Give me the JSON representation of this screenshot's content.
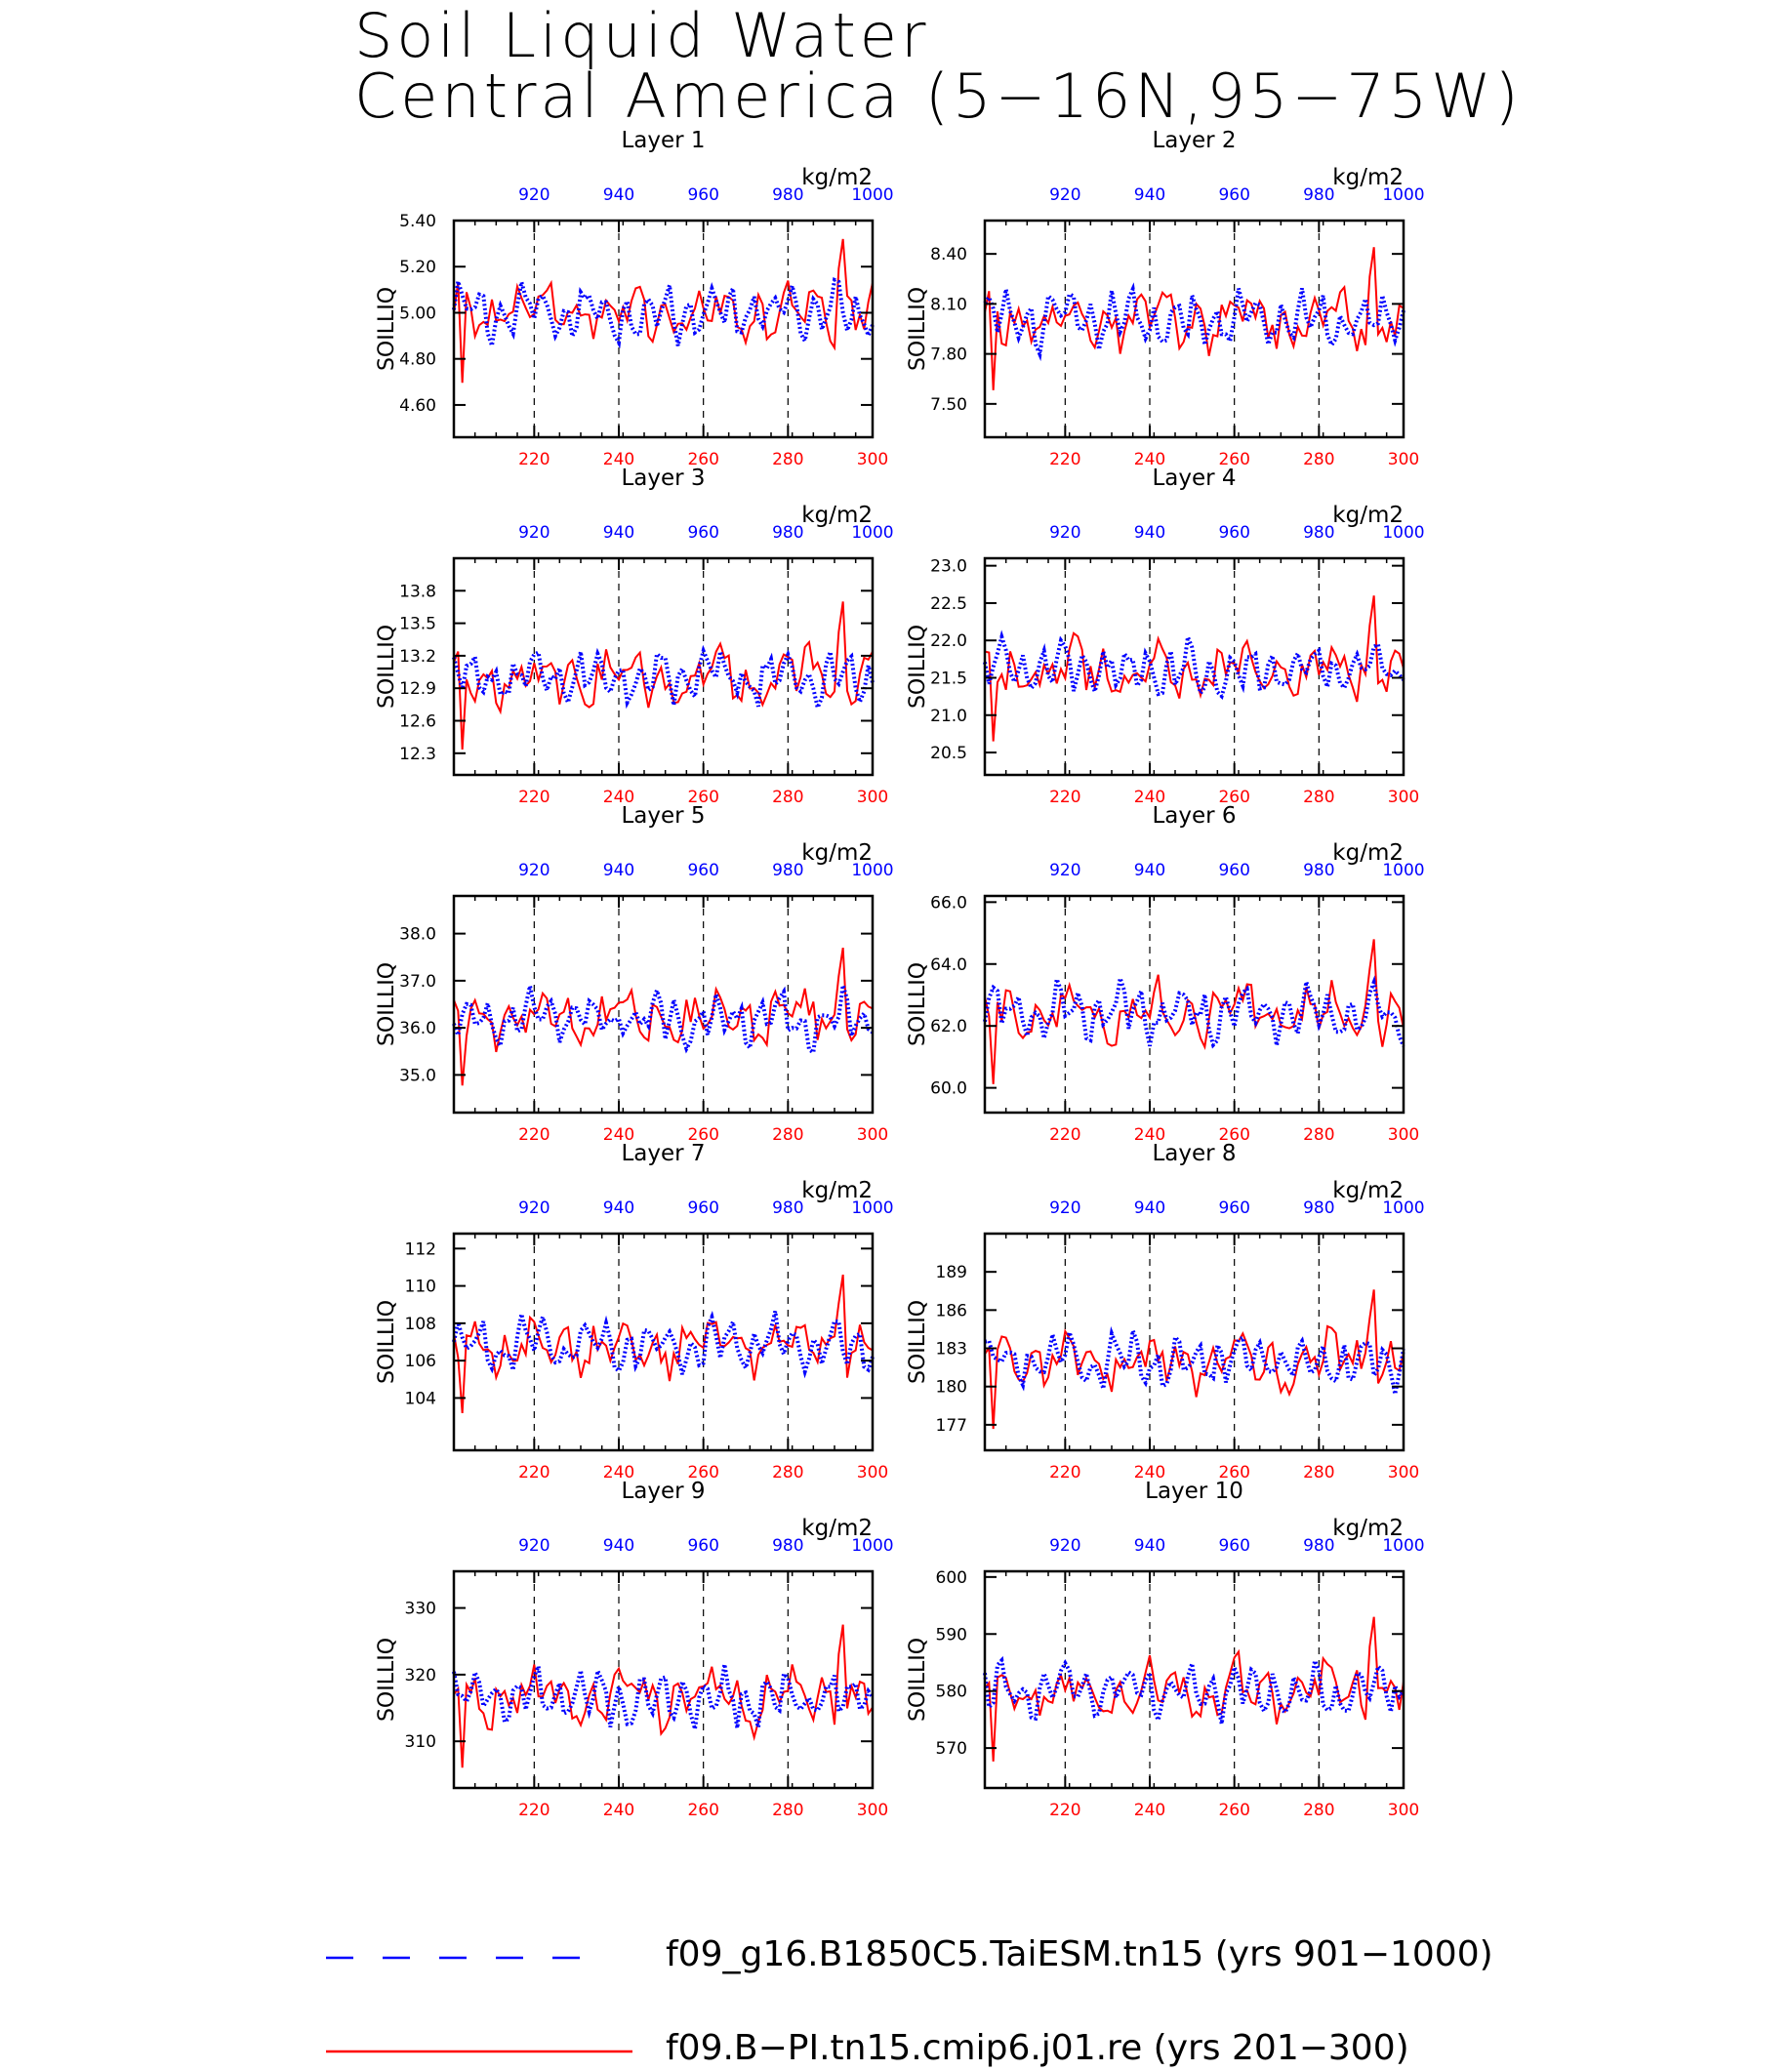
{
  "title_lines": [
    "Soil Liquid Water",
    "Central America (5−16N,95−75W)"
  ],
  "colors": {
    "blue": "#0000ff",
    "red": "#ff0000",
    "axis": "#000000"
  },
  "legend": [
    {
      "label": "f09_g16.B1850C5.TaiESM.tn15 (yrs 901−1000)",
      "color": "#0000ff",
      "style": "dashed"
    },
    {
      "label": "f09.B−PI.tn15.cmip6.j01.re (yrs 201−300)",
      "color": "#ff0000",
      "style": "solid"
    }
  ],
  "chart_data": [
    {
      "type": "line",
      "title": "Layer 1",
      "ylabel": "SOILLIQ",
      "units": "kg/m2",
      "ylim": [
        4.46,
        5.4
      ],
      "yticks": [
        "5.40",
        "5.20",
        "5.00",
        "4.80",
        "4.60"
      ],
      "base": 5.0,
      "amp": 0.16,
      "xlim_bottom": [
        201,
        300
      ],
      "xticks_bottom": [
        "220",
        "240",
        "260",
        "280",
        "300"
      ],
      "xlim_top": [
        901,
        1000
      ],
      "xticks_top": [
        "920",
        "940",
        "960",
        "980",
        "1000"
      ],
      "grid_x": [
        220,
        240,
        260,
        280
      ]
    },
    {
      "type": "line",
      "title": "Layer 2",
      "ylabel": "SOILLIQ",
      "units": "kg/m2",
      "ylim": [
        7.3,
        8.6
      ],
      "yticks": [
        "8.40",
        "8.10",
        "7.80",
        "7.50"
      ],
      "base": 8.0,
      "amp": 0.22,
      "xlim_bottom": [
        201,
        300
      ],
      "xticks_bottom": [
        "220",
        "240",
        "260",
        "280",
        "300"
      ],
      "xlim_top": [
        901,
        1000
      ],
      "xticks_top": [
        "920",
        "940",
        "960",
        "980",
        "1000"
      ],
      "grid_x": [
        220,
        240,
        260,
        280
      ]
    },
    {
      "type": "line",
      "title": "Layer 3",
      "ylabel": "SOILLIQ",
      "units": "kg/m2",
      "ylim": [
        12.1,
        14.1
      ],
      "yticks": [
        "13.8",
        "13.5",
        "13.2",
        "12.9",
        "12.6",
        "12.3"
      ],
      "base": 13.0,
      "amp": 0.35,
      "xlim_bottom": [
        201,
        300
      ],
      "xticks_bottom": [
        "220",
        "240",
        "260",
        "280",
        "300"
      ],
      "xlim_top": [
        901,
        1000
      ],
      "xticks_top": [
        "920",
        "940",
        "960",
        "980",
        "1000"
      ],
      "grid_x": [
        220,
        240,
        260,
        280
      ]
    },
    {
      "type": "line",
      "title": "Layer 4",
      "ylabel": "SOILLIQ",
      "units": "kg/m2",
      "ylim": [
        20.2,
        23.1
      ],
      "yticks": [
        "23.0",
        "22.5",
        "22.0",
        "21.5",
        "21.0",
        "20.5"
      ],
      "base": 21.6,
      "amp": 0.5,
      "xlim_bottom": [
        201,
        300
      ],
      "xticks_bottom": [
        "220",
        "240",
        "260",
        "280",
        "300"
      ],
      "xlim_top": [
        901,
        1000
      ],
      "xticks_top": [
        "920",
        "940",
        "960",
        "980",
        "1000"
      ],
      "grid_x": [
        220,
        240,
        260,
        280
      ]
    },
    {
      "type": "line",
      "title": "Layer 5",
      "ylabel": "SOILLIQ",
      "units": "kg/m2",
      "ylim": [
        34.2,
        38.8
      ],
      "yticks": [
        "38.0",
        "37.0",
        "36.0",
        "35.0"
      ],
      "base": 36.2,
      "amp": 0.75,
      "xlim_bottom": [
        201,
        300
      ],
      "xticks_bottom": [
        "220",
        "240",
        "260",
        "280",
        "300"
      ],
      "xlim_top": [
        901,
        1000
      ],
      "xticks_top": [
        "920",
        "940",
        "960",
        "980",
        "1000"
      ],
      "grid_x": [
        220,
        240,
        260,
        280
      ]
    },
    {
      "type": "line",
      "title": "Layer 6",
      "ylabel": "SOILLIQ",
      "units": "kg/m2",
      "ylim": [
        59.2,
        66.2
      ],
      "yticks": [
        "66.0",
        "64.0",
        "62.0",
        "60.0"
      ],
      "base": 62.4,
      "amp": 1.2,
      "xlim_bottom": [
        201,
        300
      ],
      "xticks_bottom": [
        "220",
        "240",
        "260",
        "280",
        "300"
      ],
      "xlim_top": [
        901,
        1000
      ],
      "xticks_top": [
        "920",
        "940",
        "960",
        "980",
        "1000"
      ],
      "grid_x": [
        220,
        240,
        260,
        280
      ]
    },
    {
      "type": "line",
      "title": "Layer 7",
      "ylabel": "SOILLIQ",
      "units": "kg/m2",
      "ylim": [
        101.2,
        112.8
      ],
      "yticks": [
        "112",
        "110",
        "108",
        "106",
        "104"
      ],
      "base": 106.8,
      "amp": 1.9,
      "xlim_bottom": [
        201,
        300
      ],
      "xticks_bottom": [
        "220",
        "240",
        "260",
        "280",
        "300"
      ],
      "xlim_top": [
        901,
        1000
      ],
      "xticks_top": [
        "920",
        "940",
        "960",
        "980",
        "1000"
      ],
      "grid_x": [
        220,
        240,
        260,
        280
      ]
    },
    {
      "type": "line",
      "title": "Layer 8",
      "ylabel": "SOILLIQ",
      "units": "kg/m2",
      "ylim": [
        175.0,
        192.0
      ],
      "yticks": [
        "189",
        "186",
        "183",
        "180",
        "177"
      ],
      "base": 182.0,
      "amp": 2.8,
      "xlim_bottom": [
        201,
        300
      ],
      "xticks_bottom": [
        "220",
        "240",
        "260",
        "280",
        "300"
      ],
      "xlim_top": [
        901,
        1000
      ],
      "xticks_top": [
        "920",
        "940",
        "960",
        "980",
        "1000"
      ],
      "grid_x": [
        220,
        240,
        260,
        280
      ]
    },
    {
      "type": "line",
      "title": "Layer 9",
      "ylabel": "SOILLIQ",
      "units": "kg/m2",
      "ylim": [
        303.0,
        335.5
      ],
      "yticks": [
        "330",
        "320",
        "310"
      ],
      "base": 316.5,
      "amp": 5.5,
      "xlim_bottom": [
        201,
        300
      ],
      "xticks_bottom": [
        "220",
        "240",
        "260",
        "280",
        "300"
      ],
      "xlim_top": [
        901,
        1000
      ],
      "xticks_top": [
        "920",
        "940",
        "960",
        "980",
        "1000"
      ],
      "grid_x": [
        220,
        240,
        260,
        280
      ]
    },
    {
      "type": "line",
      "title": "Layer 10",
      "ylabel": "SOILLIQ",
      "units": "kg/m2",
      "ylim": [
        563.0,
        601.0
      ],
      "yticks": [
        "600",
        "590",
        "580",
        "570"
      ],
      "base": 580.0,
      "amp": 6.5,
      "xlim_bottom": [
        201,
        300
      ],
      "xticks_bottom": [
        "220",
        "240",
        "260",
        "280",
        "300"
      ],
      "xlim_top": [
        901,
        1000
      ],
      "xticks_top": [
        "920",
        "940",
        "960",
        "980",
        "1000"
      ],
      "grid_x": [
        220,
        240,
        260,
        280
      ]
    }
  ]
}
